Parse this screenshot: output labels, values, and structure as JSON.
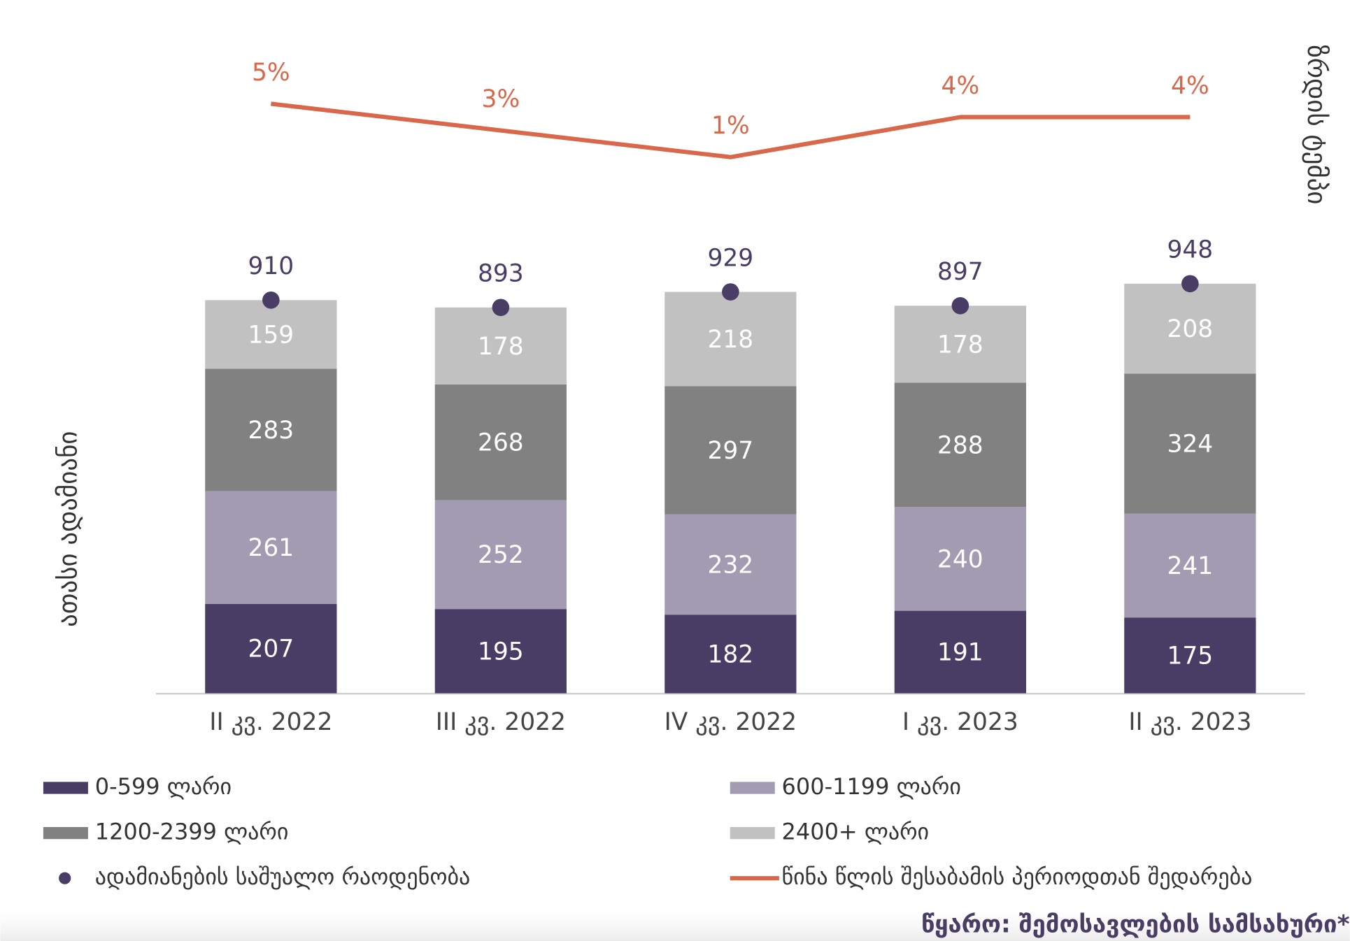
{
  "chart_data": {
    "type": "bar",
    "stacked": true,
    "ylabel": "ათასი ადამიანი",
    "y2label": "ზრდის ტემპი",
    "source": "წყარო: შემოსავლების სამსახური*",
    "categories": [
      "II კვ. 2022",
      "III კვ. 2022",
      "IV კვ. 2022",
      "I კვ. 2023",
      "II კვ. 2023"
    ],
    "ylim": [
      0,
      1525
    ],
    "y2lim": [
      -39.2,
      10.2
    ],
    "series": [
      {
        "name": "0-599 ლარი",
        "type": "bar",
        "color": "#493c65",
        "values": [
          207,
          195,
          182,
          191,
          175
        ]
      },
      {
        "name": "600-1199 ლარი",
        "type": "bar",
        "color": "#a39bb1",
        "values": [
          261,
          252,
          232,
          240,
          241
        ]
      },
      {
        "name": "1200-2399 ლარი",
        "type": "bar",
        "color": "#818181",
        "values": [
          283,
          268,
          297,
          288,
          324
        ]
      },
      {
        "name": "2400+ ლარი",
        "type": "bar",
        "color": "#c1c1c2",
        "values": [
          159,
          178,
          218,
          178,
          208
        ]
      },
      {
        "name": "ადამიანების საშუალო რაოდენობა",
        "type": "scatter",
        "color": "#493c65",
        "values": [
          910,
          893,
          929,
          897,
          948
        ]
      },
      {
        "name": "წინა წლის შესაბამის პერიოდთან შედარება",
        "type": "line",
        "axis": "y2",
        "color": "#d9684a",
        "values": [
          5,
          3,
          1,
          4,
          4
        ],
        "value_labels": [
          "5%",
          "3%",
          "1%",
          "4%",
          "4%"
        ]
      }
    ]
  }
}
